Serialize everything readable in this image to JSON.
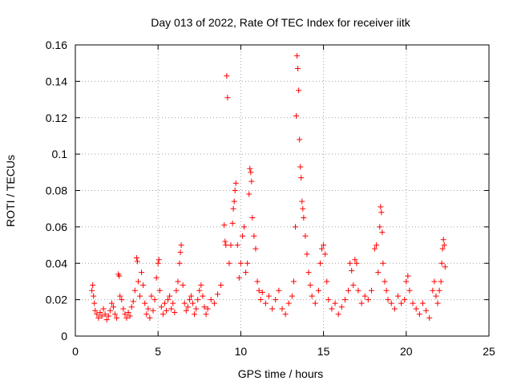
{
  "chart_data": {
    "type": "scatter",
    "title": "Day 013 of 2022, Rate Of TEC Index for receiver iitk",
    "xlabel": "GPS time / hours",
    "ylabel": "ROTI / TECUs",
    "xlim": [
      0,
      25
    ],
    "ylim": [
      0,
      0.16
    ],
    "x_ticks": [
      0,
      5,
      10,
      15,
      20,
      25
    ],
    "x_tick_labels": [
      "0",
      "5",
      "10",
      "15",
      "20",
      "25"
    ],
    "y_ticks": [
      0,
      0.02,
      0.04,
      0.06,
      0.08,
      0.1,
      0.12,
      0.14,
      0.16
    ],
    "y_tick_labels": [
      "0",
      "0.02",
      "0.04",
      "0.06",
      "0.08",
      "0.1",
      "0.12",
      "0.14",
      "0.16"
    ],
    "grid": true,
    "marker": "plus",
    "color": "#ff0000",
    "series": [
      {
        "points": [
          [
            1.0,
            0.025
          ],
          [
            1.05,
            0.028
          ],
          [
            1.1,
            0.022
          ],
          [
            1.15,
            0.018
          ],
          [
            1.2,
            0.014
          ],
          [
            1.3,
            0.012
          ],
          [
            1.4,
            0.01
          ],
          [
            1.5,
            0.013
          ],
          [
            1.6,
            0.011
          ],
          [
            1.7,
            0.015
          ],
          [
            1.8,
            0.012
          ],
          [
            1.9,
            0.009
          ],
          [
            2.0,
            0.011
          ],
          [
            2.1,
            0.014
          ],
          [
            2.2,
            0.018
          ],
          [
            2.3,
            0.016
          ],
          [
            2.4,
            0.012
          ],
          [
            2.5,
            0.01
          ],
          [
            2.6,
            0.034
          ],
          [
            2.65,
            0.033
          ],
          [
            2.7,
            0.022
          ],
          [
            2.8,
            0.02
          ],
          [
            2.9,
            0.015
          ],
          [
            3.0,
            0.012
          ],
          [
            3.1,
            0.01
          ],
          [
            3.2,
            0.013
          ],
          [
            3.3,
            0.011
          ],
          [
            3.4,
            0.016
          ],
          [
            3.5,
            0.019
          ],
          [
            3.6,
            0.025
          ],
          [
            3.7,
            0.043
          ],
          [
            3.75,
            0.041
          ],
          [
            3.8,
            0.03
          ],
          [
            3.9,
            0.022
          ],
          [
            4.0,
            0.035
          ],
          [
            4.1,
            0.028
          ],
          [
            4.2,
            0.018
          ],
          [
            4.3,
            0.012
          ],
          [
            4.4,
            0.015
          ],
          [
            4.5,
            0.01
          ],
          [
            4.6,
            0.022
          ],
          [
            4.7,
            0.014
          ],
          [
            4.8,
            0.02
          ],
          [
            4.9,
            0.032
          ],
          [
            5.0,
            0.04
          ],
          [
            5.05,
            0.042
          ],
          [
            5.1,
            0.025
          ],
          [
            5.2,
            0.016
          ],
          [
            5.3,
            0.012
          ],
          [
            5.4,
            0.018
          ],
          [
            5.5,
            0.014
          ],
          [
            5.6,
            0.02
          ],
          [
            5.7,
            0.022
          ],
          [
            5.8,
            0.015
          ],
          [
            5.9,
            0.018
          ],
          [
            6.0,
            0.013
          ],
          [
            6.1,
            0.025
          ],
          [
            6.2,
            0.03
          ],
          [
            6.3,
            0.04
          ],
          [
            6.35,
            0.046
          ],
          [
            6.4,
            0.05
          ],
          [
            6.5,
            0.028
          ],
          [
            6.6,
            0.018
          ],
          [
            6.7,
            0.014
          ],
          [
            6.8,
            0.016
          ],
          [
            6.9,
            0.02
          ],
          [
            7.0,
            0.022
          ],
          [
            7.1,
            0.018
          ],
          [
            7.2,
            0.012
          ],
          [
            7.3,
            0.015
          ],
          [
            7.4,
            0.02
          ],
          [
            7.5,
            0.025
          ],
          [
            7.6,
            0.028
          ],
          [
            7.7,
            0.022
          ],
          [
            7.8,
            0.016
          ],
          [
            7.9,
            0.012
          ],
          [
            8.0,
            0.015
          ],
          [
            8.2,
            0.02
          ],
          [
            8.4,
            0.018
          ],
          [
            8.6,
            0.023
          ],
          [
            8.8,
            0.028
          ],
          [
            9.0,
            0.061
          ],
          [
            9.05,
            0.052
          ],
          [
            9.1,
            0.05
          ],
          [
            9.15,
            0.143
          ],
          [
            9.2,
            0.131
          ],
          [
            9.3,
            0.04
          ],
          [
            9.4,
            0.05
          ],
          [
            9.5,
            0.062
          ],
          [
            9.55,
            0.07
          ],
          [
            9.6,
            0.074
          ],
          [
            9.65,
            0.08
          ],
          [
            9.7,
            0.084
          ],
          [
            9.8,
            0.05
          ],
          [
            9.9,
            0.032
          ],
          [
            10.0,
            0.04
          ],
          [
            10.1,
            0.055
          ],
          [
            10.2,
            0.06
          ],
          [
            10.3,
            0.035
          ],
          [
            10.4,
            0.04
          ],
          [
            10.5,
            0.078
          ],
          [
            10.55,
            0.092
          ],
          [
            10.6,
            0.09
          ],
          [
            10.65,
            0.085
          ],
          [
            10.7,
            0.065
          ],
          [
            10.8,
            0.055
          ],
          [
            10.9,
            0.048
          ],
          [
            11.0,
            0.03
          ],
          [
            11.1,
            0.025
          ],
          [
            11.2,
            0.02
          ],
          [
            11.3,
            0.024
          ],
          [
            11.5,
            0.018
          ],
          [
            11.7,
            0.022
          ],
          [
            11.9,
            0.015
          ],
          [
            12.1,
            0.02
          ],
          [
            12.3,
            0.025
          ],
          [
            12.5,
            0.015
          ],
          [
            12.7,
            0.012
          ],
          [
            12.9,
            0.018
          ],
          [
            13.1,
            0.022
          ],
          [
            13.2,
            0.03
          ],
          [
            13.3,
            0.06
          ],
          [
            13.35,
            0.121
          ],
          [
            13.4,
            0.154
          ],
          [
            13.45,
            0.147
          ],
          [
            13.5,
            0.135
          ],
          [
            13.55,
            0.108
          ],
          [
            13.6,
            0.093
          ],
          [
            13.65,
            0.087
          ],
          [
            13.7,
            0.074
          ],
          [
            13.75,
            0.07
          ],
          [
            13.8,
            0.065
          ],
          [
            13.9,
            0.055
          ],
          [
            14.0,
            0.045
          ],
          [
            14.1,
            0.035
          ],
          [
            14.2,
            0.028
          ],
          [
            14.3,
            0.022
          ],
          [
            14.5,
            0.018
          ],
          [
            14.7,
            0.025
          ],
          [
            14.8,
            0.04
          ],
          [
            14.9,
            0.048
          ],
          [
            15.0,
            0.05
          ],
          [
            15.1,
            0.045
          ],
          [
            15.2,
            0.03
          ],
          [
            15.3,
            0.02
          ],
          [
            15.5,
            0.015
          ],
          [
            15.7,
            0.018
          ],
          [
            15.9,
            0.012
          ],
          [
            16.1,
            0.016
          ],
          [
            16.3,
            0.02
          ],
          [
            16.5,
            0.025
          ],
          [
            16.6,
            0.04
          ],
          [
            16.7,
            0.036
          ],
          [
            16.8,
            0.028
          ],
          [
            16.9,
            0.042
          ],
          [
            17.0,
            0.04
          ],
          [
            17.1,
            0.025
          ],
          [
            17.3,
            0.018
          ],
          [
            17.5,
            0.022
          ],
          [
            17.7,
            0.02
          ],
          [
            17.9,
            0.025
          ],
          [
            18.1,
            0.048
          ],
          [
            18.2,
            0.05
          ],
          [
            18.3,
            0.035
          ],
          [
            18.4,
            0.06
          ],
          [
            18.45,
            0.071
          ],
          [
            18.5,
            0.068
          ],
          [
            18.55,
            0.057
          ],
          [
            18.6,
            0.04
          ],
          [
            18.7,
            0.03
          ],
          [
            18.8,
            0.025
          ],
          [
            18.9,
            0.02
          ],
          [
            19.1,
            0.018
          ],
          [
            19.3,
            0.015
          ],
          [
            19.5,
            0.022
          ],
          [
            19.7,
            0.018
          ],
          [
            19.9,
            0.02
          ],
          [
            20.0,
            0.03
          ],
          [
            20.1,
            0.033
          ],
          [
            20.2,
            0.025
          ],
          [
            20.4,
            0.018
          ],
          [
            20.6,
            0.015
          ],
          [
            20.8,
            0.012
          ],
          [
            21.0,
            0.018
          ],
          [
            21.2,
            0.014
          ],
          [
            21.4,
            0.01
          ],
          [
            21.6,
            0.025
          ],
          [
            21.7,
            0.03
          ],
          [
            21.8,
            0.022
          ],
          [
            21.9,
            0.018
          ],
          [
            22.0,
            0.025
          ],
          [
            22.1,
            0.03
          ],
          [
            22.15,
            0.04
          ],
          [
            22.2,
            0.048
          ],
          [
            22.25,
            0.053
          ],
          [
            22.3,
            0.05
          ],
          [
            22.35,
            0.038
          ]
        ]
      }
    ]
  }
}
